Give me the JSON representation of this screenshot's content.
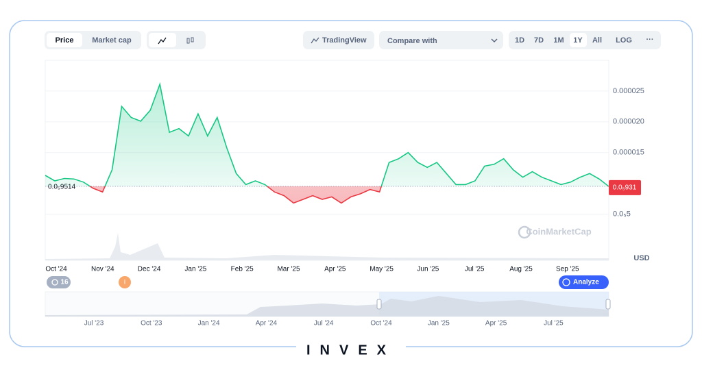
{
  "toolbar": {
    "tabs": [
      "Price",
      "Market cap"
    ],
    "tradingview": "TradingView",
    "compare": "Compare with",
    "ranges": [
      "1D",
      "7D",
      "1M",
      "1Y",
      "All",
      "LOG"
    ]
  },
  "chart_data": {
    "type": "line",
    "series": [
      {
        "color": "#16c784",
        "values": [
          1.13e-05,
          1.04e-05,
          1.08e-05,
          1.07e-05,
          1.02e-05,
          9.2e-06,
          8.6e-06,
          1.22e-05,
          2.25e-05,
          2.07e-05,
          2.01e-05,
          2.19e-05,
          2.61e-05,
          1.83e-05,
          1.89e-05,
          1.77e-05,
          2.13e-05,
          1.77e-05,
          2.07e-05,
          1.58e-05,
          1.16e-05,
          9.8e-06,
          1.04e-05,
          9.8e-06,
          8.6e-06,
          8e-06,
          6.8e-06,
          7.4e-06,
          8e-06,
          7.4e-06,
          7.8e-06,
          6.8e-06,
          7.8e-06,
          8.3e-06,
          9e-06,
          8.6e-06,
          1.34e-05,
          1.4e-05,
          1.5e-05,
          1.34e-05,
          1.26e-05,
          1.34e-05,
          1.16e-05,
          9.8e-06,
          9.8e-06,
          1.04e-05,
          1.28e-05,
          1.31e-05,
          1.4e-05,
          1.22e-05,
          1.1e-05,
          1.19e-05,
          1.1e-05,
          1.04e-05,
          9.8e-06,
          1.02e-05,
          1.1e-05,
          1.16e-05,
          1.07e-05,
          9.5e-06
        ]
      }
    ],
    "below_color": "#ea3943",
    "ylim": [
      2.5e-06,
      3e-05
    ],
    "yticks": [
      {
        "value": 5e-06,
        "label": "0.0₅5"
      },
      {
        "value": 1.5e-05,
        "label": "0.000015"
      },
      {
        "value": 2e-05,
        "label": "0.000020"
      },
      {
        "value": 2.5e-05,
        "label": "0.000025"
      }
    ],
    "baseline": {
      "value": 9.514e-06,
      "label": "0.0₅9514"
    },
    "current_price": {
      "value": 9.31e-06,
      "label": "0.0₅931"
    },
    "x_labels": [
      "Oct '24",
      "Nov '24",
      "Dec '24",
      "Jan '25",
      "Feb '25",
      "Mar '25",
      "Apr '25",
      "May '25",
      "Jun '25",
      "Jul '25",
      "Aug '25",
      "Sep '25"
    ],
    "currency": "USD",
    "watermark": "CoinMarketCap",
    "grid": true
  },
  "navigator": {
    "x_labels": [
      "Jul '23",
      "Oct '23",
      "Jan '24",
      "Apr '24",
      "Jul '24",
      "Oct '24",
      "Jan '25",
      "Apr '25",
      "Jul '25"
    ]
  },
  "badges": {
    "count": 16,
    "info": "i",
    "analyze": "Analyze"
  },
  "brand": "INVEX"
}
